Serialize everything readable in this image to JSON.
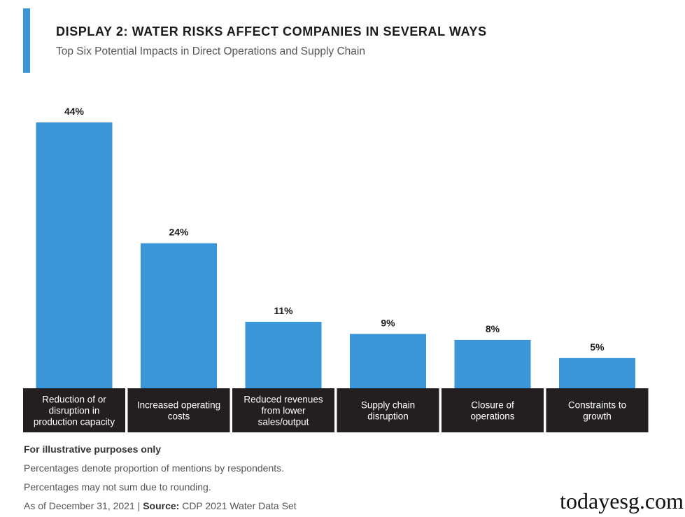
{
  "header": {
    "title": "DISPLAY 2: WATER RISKS AFFECT COMPANIES IN SEVERAL WAYS",
    "subtitle": "Top Six Potential Impacts in Direct Operations and Supply Chain"
  },
  "chart_data": {
    "type": "bar",
    "title": "DISPLAY 2: WATER RISKS AFFECT COMPANIES IN SEVERAL WAYS",
    "subtitle": "Top Six Potential Impacts in Direct Operations and Supply Chain",
    "categories": [
      [
        "Reduction of or",
        "disruption in",
        "production capacity"
      ],
      [
        "Increased operating",
        "costs"
      ],
      [
        "Reduced revenues",
        "from lower",
        "sales/output"
      ],
      [
        "Supply chain",
        "disruption"
      ],
      [
        "Closure of",
        "operations"
      ],
      [
        "Constraints to",
        "growth"
      ]
    ],
    "values": [
      44,
      24,
      11,
      9,
      8,
      5
    ],
    "value_labels": [
      "44%",
      "24%",
      "11%",
      "9%",
      "8%",
      "5%"
    ],
    "unit": "%",
    "xlabel": "",
    "ylabel": "",
    "ylim": [
      0,
      44
    ],
    "grid": false,
    "legend": "none",
    "colors": {
      "bar": "#3a96d6",
      "label_box": "#231f20",
      "accent": "#3a96d6"
    }
  },
  "footer": {
    "disclaimer": "For illustrative purposes only",
    "note1": "Percentages denote proportion of mentions by respondents.",
    "note2": "Percentages may not sum due to rounding.",
    "asof": "As of December 31, 2021 | ",
    "source_label": "Source:",
    "source_text": " CDP 2021 Water Data Set"
  },
  "watermark": "todayesg.com"
}
